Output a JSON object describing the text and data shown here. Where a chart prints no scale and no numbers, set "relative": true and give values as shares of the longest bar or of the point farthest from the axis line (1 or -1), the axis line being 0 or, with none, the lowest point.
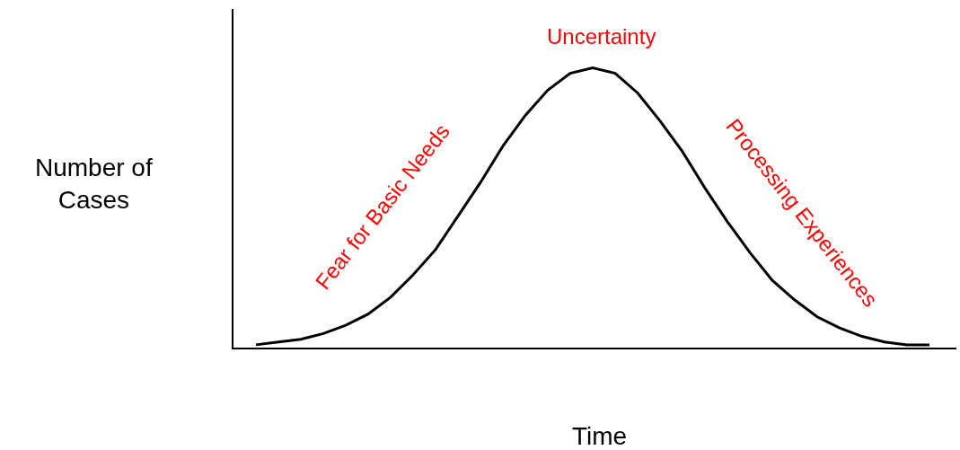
{
  "chart_data": {
    "type": "line",
    "relative": true,
    "xlabel": "Time",
    "ylabel": "Number of Cases",
    "annotations": [
      "Uncertainty",
      "Fear for Basic Needs",
      "Processing Experiences"
    ],
    "categories": [
      null,
      null,
      null,
      null,
      null,
      null,
      null,
      null,
      null,
      null,
      null,
      null,
      null,
      null,
      null,
      null,
      null,
      null,
      null,
      null,
      null,
      null,
      null,
      null,
      null,
      null,
      null,
      null,
      null,
      null,
      null
    ],
    "series": [
      {
        "color": "#000000",
        "values": [
          0.01,
          0.02,
          0.03,
          0.05,
          0.08,
          0.12,
          0.18,
          0.26,
          0.35,
          0.47,
          0.59,
          0.72,
          0.83,
          0.92,
          0.98,
          1,
          0.98,
          0.91,
          0.81,
          0.7,
          0.57,
          0.45,
          0.34,
          0.24,
          0.17,
          0.11,
          0.07,
          0.04,
          0.02,
          0.01,
          0.01
        ]
      }
    ],
    "marker": "none",
    "line_style": "solid"
  }
}
